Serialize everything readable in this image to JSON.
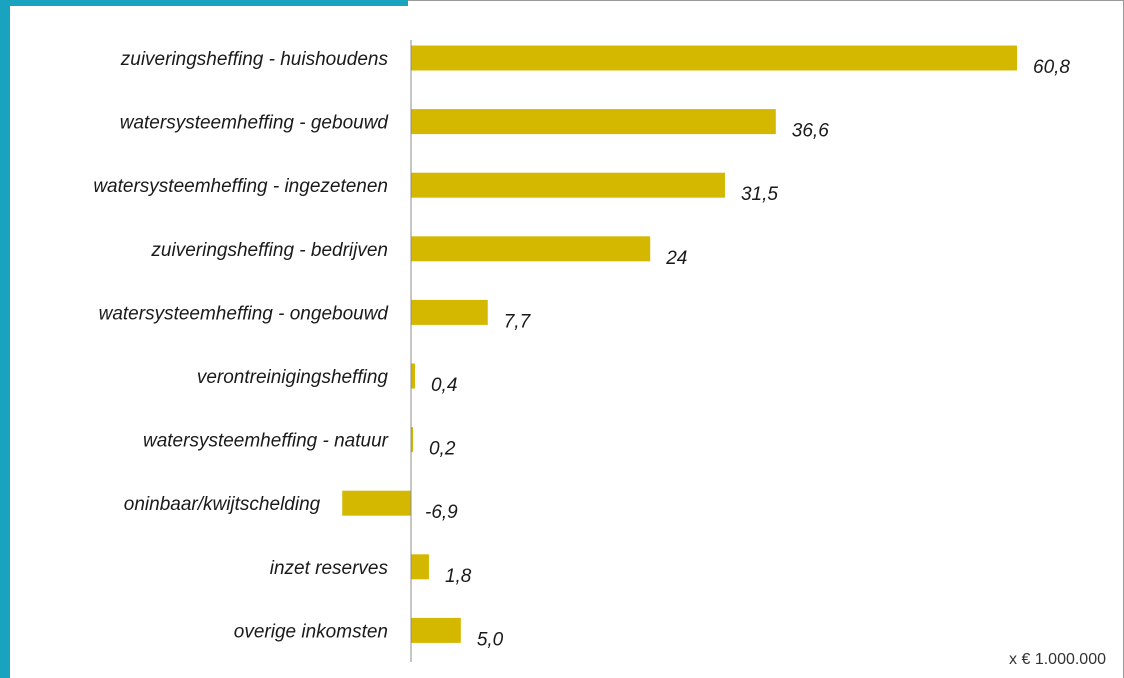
{
  "colors": {
    "bar": "#d4b800",
    "accent": "#1aa3bf",
    "axis": "#8c8c8c",
    "text": "#1a1a1a"
  },
  "unit_note": "x € 1.000.000",
  "chart_data": {
    "type": "bar",
    "orientation": "horizontal",
    "categories": [
      "zuiveringsheffing - huishoudens",
      "watersysteemheffing - gebouwd",
      "watersysteemheffing - ingezetenen",
      "zuiveringsheffing - bedrijven",
      "watersysteemheffing - ongebouwd",
      "verontreinigingsheffing",
      "watersysteemheffing - natuur",
      "oninbaar/kwijtschelding",
      "inzet reserves",
      "overige inkomsten"
    ],
    "values": [
      60.8,
      36.6,
      31.5,
      24,
      7.7,
      0.4,
      0.2,
      -6.9,
      1.8,
      5.0
    ],
    "value_labels": [
      "60,8",
      "36,6",
      "31,5",
      "24",
      "7,7",
      "0,4",
      "0,2",
      "-6,9",
      "1,8",
      "5,0"
    ],
    "xlim": [
      -6.9,
      60.8
    ],
    "grid": false,
    "legend": "none"
  }
}
